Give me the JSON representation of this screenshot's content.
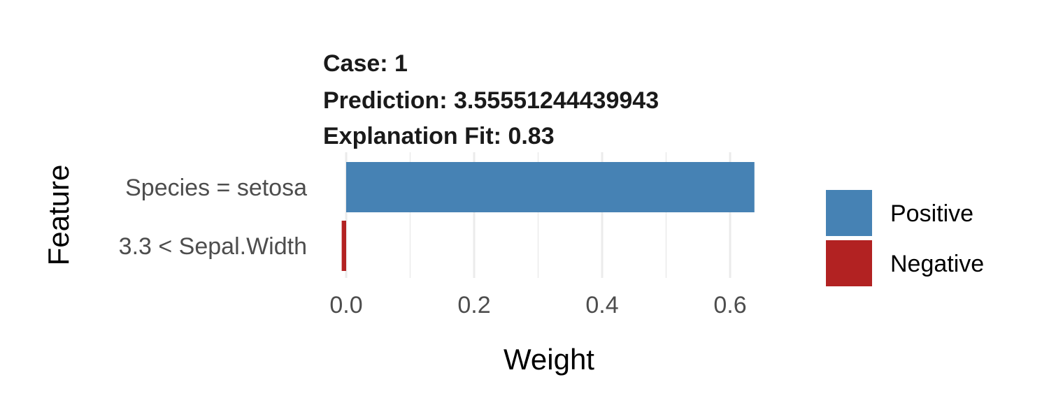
{
  "chart_data": {
    "type": "bar",
    "orientation": "horizontal",
    "title_lines": [
      "Case: 1",
      "Prediction: 3.55551244439943",
      "Explanation Fit: 0.83"
    ],
    "xlabel": "Weight",
    "ylabel": "Feature",
    "categories": [
      "Species = setosa",
      "3.3 < Sepal.Width"
    ],
    "values": [
      0.638,
      -0.007
    ],
    "signs": [
      "Positive",
      "Negative"
    ],
    "xlim": [
      -0.005,
      0.6
    ],
    "x_ticks": [
      0.0,
      0.2,
      0.4,
      0.6
    ],
    "x_tick_labels": [
      "0.0",
      "0.2",
      "0.4",
      "0.6"
    ],
    "grid": true,
    "legend": {
      "placement": "right",
      "entries": [
        {
          "label": "Positive",
          "color": "#4682B4"
        },
        {
          "label": "Negative",
          "color": "#B22222"
        }
      ]
    }
  }
}
